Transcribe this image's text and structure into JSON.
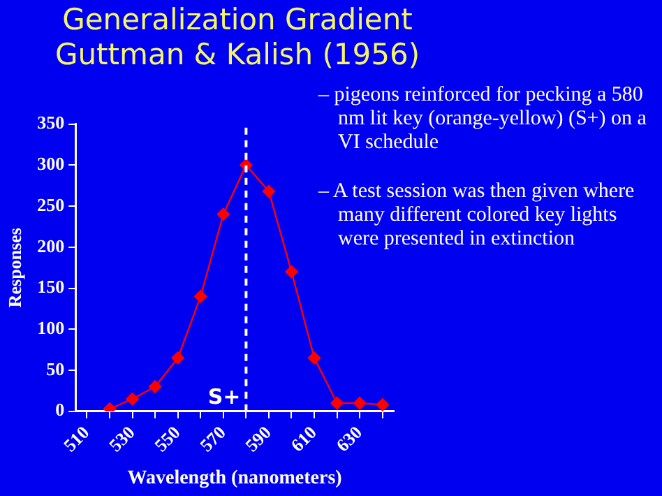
{
  "chart_data": {
    "type": "line",
    "title": "Generalization Gradient\nGuttman & Kalish (1956)",
    "xlabel": "Wavelength (nanometers)",
    "ylabel": "Responses",
    "x": [
      520,
      530,
      540,
      550,
      560,
      570,
      580,
      590,
      600,
      610,
      620,
      630,
      640
    ],
    "series": [
      {
        "color": "#ff0000",
        "values": [
          3,
          15,
          30,
          65,
          140,
          240,
          300,
          268,
          170,
          65,
          10,
          10,
          8
        ]
      }
    ],
    "xlim": [
      505,
      645
    ],
    "xticks": [
      510,
      {
        "value": 520,
        "label": null
      },
      530,
      {
        "value": 540,
        "label": null
      },
      550,
      {
        "value": 560,
        "label": null
      },
      570,
      {
        "value": 580,
        "label": null
      },
      590,
      {
        "value": 600,
        "label": null
      },
      610,
      {
        "value": 620,
        "label": null
      },
      630,
      {
        "value": 640,
        "label": null
      }
    ],
    "ylim": [
      0,
      350
    ],
    "yticks": [
      0,
      50,
      100,
      150,
      200,
      250,
      300,
      350
    ],
    "ref_lines": [
      {
        "axis": "x",
        "value": 580,
        "label": "S+",
        "color": "#ffffff",
        "line_style": "dashed"
      }
    ],
    "annotations": [
      "– pigeons reinforced for pecking a 580 nm lit key (orange-yellow) (S+) on a VI schedule",
      "– A test session was then given where many different colored key lights were presented in extinction"
    ],
    "marker": "diamond",
    "grid": false,
    "legend": false
  }
}
